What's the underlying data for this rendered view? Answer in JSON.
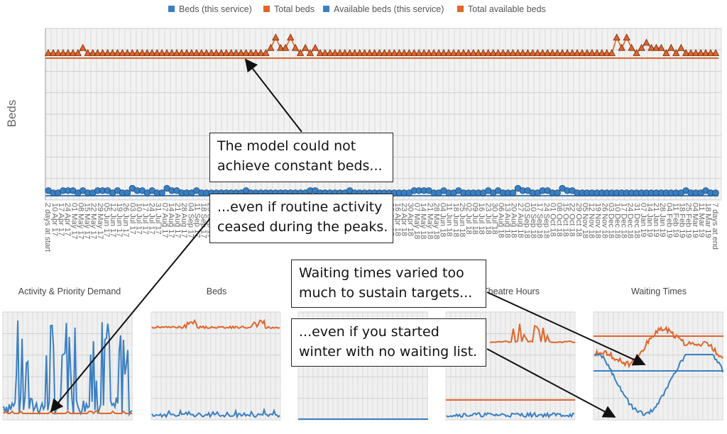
{
  "colors": {
    "blue": "#3a7fc1",
    "orange": "#e0652a",
    "grid": "#d9d9d9",
    "panel_bg": "#f0f0f0"
  },
  "main_chart": {
    "ylabel": "Beds",
    "legend": [
      {
        "label": "Beds (this service)",
        "color": "#3a7fc1"
      },
      {
        "label": "Total beds",
        "color": "#e0652a"
      },
      {
        "label": "Available beds (this service)",
        "color": "#3a7fc1"
      },
      {
        "label": "Total available beds",
        "color": "#e0652a"
      }
    ],
    "first_tick": "2 days at start",
    "last_tick": "7 days at end"
  },
  "chart_data": [
    {
      "type": "line",
      "ylabel": "Beds",
      "series": [
        {
          "name": "Total beds",
          "marker": "triangle",
          "values": [
            1,
            1,
            1,
            1,
            1,
            1,
            1,
            2,
            1,
            1,
            1,
            1,
            1,
            1,
            1,
            1,
            1,
            1,
            1,
            1,
            1,
            1,
            1,
            1,
            1,
            1,
            1,
            1,
            1,
            1,
            1,
            1,
            1,
            1,
            1,
            1,
            1,
            1,
            1,
            1,
            1,
            1,
            1,
            1,
            1,
            2,
            4,
            2,
            2,
            4,
            2,
            1,
            2,
            1,
            2,
            1,
            1,
            1,
            1,
            1,
            1,
            1,
            1,
            1,
            1,
            1,
            1,
            1,
            1,
            1,
            1,
            1,
            1,
            1,
            1,
            1,
            1,
            1,
            1,
            1,
            1,
            1,
            1,
            1,
            1,
            1,
            1,
            1,
            1,
            1,
            1,
            1,
            1,
            1,
            1,
            1,
            1,
            1,
            1,
            1,
            1,
            1,
            1,
            1,
            1,
            1,
            1,
            1,
            1,
            1,
            1,
            1,
            1,
            1,
            1,
            4,
            2,
            4,
            2,
            1,
            2,
            3,
            2,
            2,
            2,
            1,
            2,
            1,
            2,
            1,
            1,
            1,
            1,
            1,
            1,
            1
          ]
        },
        {
          "name": "Beds (this service)",
          "marker": "circle",
          "values": [
            1,
            0,
            0,
            1,
            1,
            1,
            0,
            1,
            0,
            0,
            1,
            1,
            1,
            0,
            1,
            0,
            0,
            2,
            1,
            1,
            0,
            1,
            0,
            0,
            2,
            1,
            1,
            0,
            0,
            0,
            1,
            0,
            0,
            0,
            0,
            0,
            0,
            0,
            0,
            0,
            1,
            0,
            0,
            0,
            0,
            0,
            0,
            0,
            0,
            0,
            0,
            0,
            0,
            1,
            1,
            0,
            0,
            0,
            0,
            0,
            0,
            1,
            0,
            0,
            0,
            0,
            0,
            0,
            0,
            0,
            0,
            0,
            0,
            0,
            1,
            1,
            1,
            1,
            0,
            0,
            1,
            0,
            0,
            1,
            0,
            0,
            0,
            0,
            0,
            1,
            0,
            1,
            0,
            0,
            0,
            2,
            1,
            1,
            0,
            0,
            1,
            1,
            0,
            0,
            2,
            1,
            1,
            0,
            0,
            0,
            0,
            0,
            0,
            0,
            0,
            0,
            0,
            0,
            0,
            0,
            0,
            0,
            0,
            0,
            0,
            0,
            0,
            0,
            0,
            1,
            0,
            0,
            0,
            1,
            0,
            0
          ]
        }
      ]
    },
    {
      "type": "line",
      "title": "Activity & Priority Demand"
    },
    {
      "type": "line",
      "title": "Beds"
    },
    {
      "type": "line",
      "title": ""
    },
    {
      "type": "line",
      "title": "Theatre Hours"
    },
    {
      "type": "line",
      "title": "Waiting Times"
    }
  ],
  "callouts": {
    "c1": {
      "line1": "The model could not",
      "line2": "achieve constant beds..."
    },
    "c2": {
      "line1": "...even if routine activity",
      "line2": "ceased during the peaks."
    },
    "c3": {
      "line1": "Waiting times varied too",
      "line2": "much to sustain targets..."
    },
    "c4": {
      "line1": "...even if you started",
      "line2": "winter with no waiting list."
    }
  }
}
